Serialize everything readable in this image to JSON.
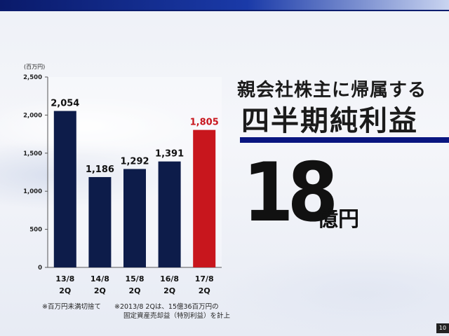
{
  "chart_data": {
    "type": "bar",
    "unit_label": "(百万円)",
    "categories": [
      [
        "13/8",
        "2Q"
      ],
      [
        "14/8",
        "2Q"
      ],
      [
        "15/8",
        "2Q"
      ],
      [
        "16/8",
        "2Q"
      ],
      [
        "17/8",
        "2Q"
      ]
    ],
    "values": [
      2054,
      1186,
      1292,
      1391,
      1805
    ],
    "value_labels": [
      "2,054",
      "1,186",
      "1,292",
      "1,391",
      "1,805"
    ],
    "bar_colors": [
      "#0d1c4a",
      "#0d1c4a",
      "#0d1c4a",
      "#0d1c4a",
      "#c8161d"
    ],
    "value_label_colors": [
      "#111111",
      "#111111",
      "#111111",
      "#111111",
      "#c8161d"
    ],
    "ylim": [
      0,
      2500
    ],
    "yticks": [
      0,
      500,
      1000,
      1500,
      2000,
      2500
    ],
    "ytick_labels": [
      "0",
      "500",
      "1,000",
      "1,500",
      "2,000",
      "2,500"
    ],
    "grid": false
  },
  "notes": {
    "note1": "※百万円未満切捨て",
    "note2": "※2013/8 2Qは、15億36百万円の",
    "note3": "固定資産売却益（特別利益）を計上"
  },
  "headline": {
    "sub": "親会社株主に帰属する",
    "main": "四半期純利益"
  },
  "highlight": {
    "number": "18",
    "unit": "億円"
  },
  "page_number": "10",
  "colors": {
    "navy": "#0d1c4a",
    "red": "#c8161d",
    "rule": "#0a1680"
  }
}
